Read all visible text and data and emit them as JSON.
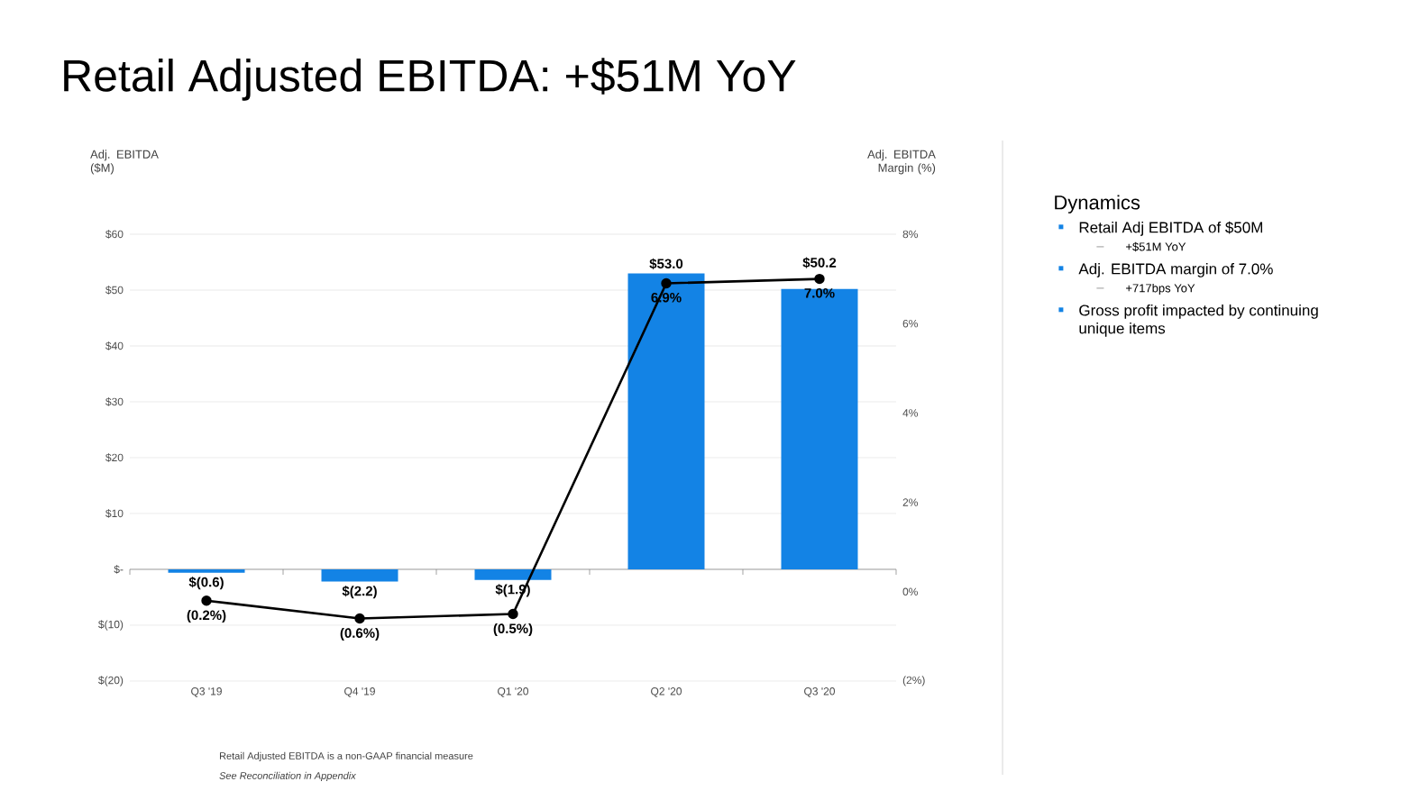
{
  "chart_data": [
    {
      "type": "bar",
      "title": "Retail Adjusted EBITDA: +$51M YoY",
      "ylabel": "Adj. EBITDA ($M)",
      "y2label": "Adj. EBITDA Margin (%)",
      "categories": [
        "Q3 '19",
        "Q4 '19",
        "Q1 '20",
        "Q2 '20",
        "Q3 '20"
      ],
      "series": [
        {
          "type": "bar",
          "color": "#1383e5",
          "values": [
            -0.6,
            -2.2,
            -1.9,
            53.0,
            50.2
          ],
          "value_labels": [
            "$(0.6)",
            "$(2.2)",
            "$(1.9)",
            "$53.0",
            "$50.2"
          ]
        },
        {
          "type": "line",
          "axis": "y2",
          "color": "#000000",
          "values": [
            -0.2,
            -0.6,
            -0.5,
            6.9,
            7.0
          ],
          "value_labels": [
            "(0.2%)",
            "(0.6%)",
            "(0.5%)",
            "6.9%",
            "7.0%"
          ]
        }
      ],
      "marker": "circle",
      "grid": "y",
      "ylim": [
        -20,
        60
      ],
      "yticks": [
        {
          "value": -20,
          "label": "$(20)"
        },
        {
          "value": -10,
          "label": "$(10)"
        },
        {
          "value": 0,
          "label": "$-"
        },
        {
          "value": 10,
          "label": "$10"
        },
        {
          "value": 20,
          "label": "$20"
        },
        {
          "value": 30,
          "label": "$30"
        },
        {
          "value": 40,
          "label": "$40"
        },
        {
          "value": 50,
          "label": "$50"
        },
        {
          "value": 60,
          "label": "$60"
        }
      ],
      "y2lim": [
        -2,
        8
      ],
      "y2ticks": [
        {
          "value": -2,
          "label": "(2%)"
        },
        {
          "value": 0,
          "label": "0%"
        },
        {
          "value": 2,
          "label": "2%"
        },
        {
          "value": 4,
          "label": "4%"
        },
        {
          "value": 6,
          "label": "6%"
        },
        {
          "value": 8,
          "label": "8%"
        }
      ],
      "annotations": [
        "Retail Adjusted EBITDA is a non-GAAP financial measure",
        "See Reconciliation in Appendix"
      ]
    },
    {
      "type": "other",
      "title": "Dynamics",
      "annotations": [
        "Retail Adj EBITDA of $50M",
        "+$51M YoY",
        "Adj. EBITDA margin of 7.0%",
        "+717bps YoY",
        "Gross profit impacted by continuing unique items"
      ]
    }
  ]
}
